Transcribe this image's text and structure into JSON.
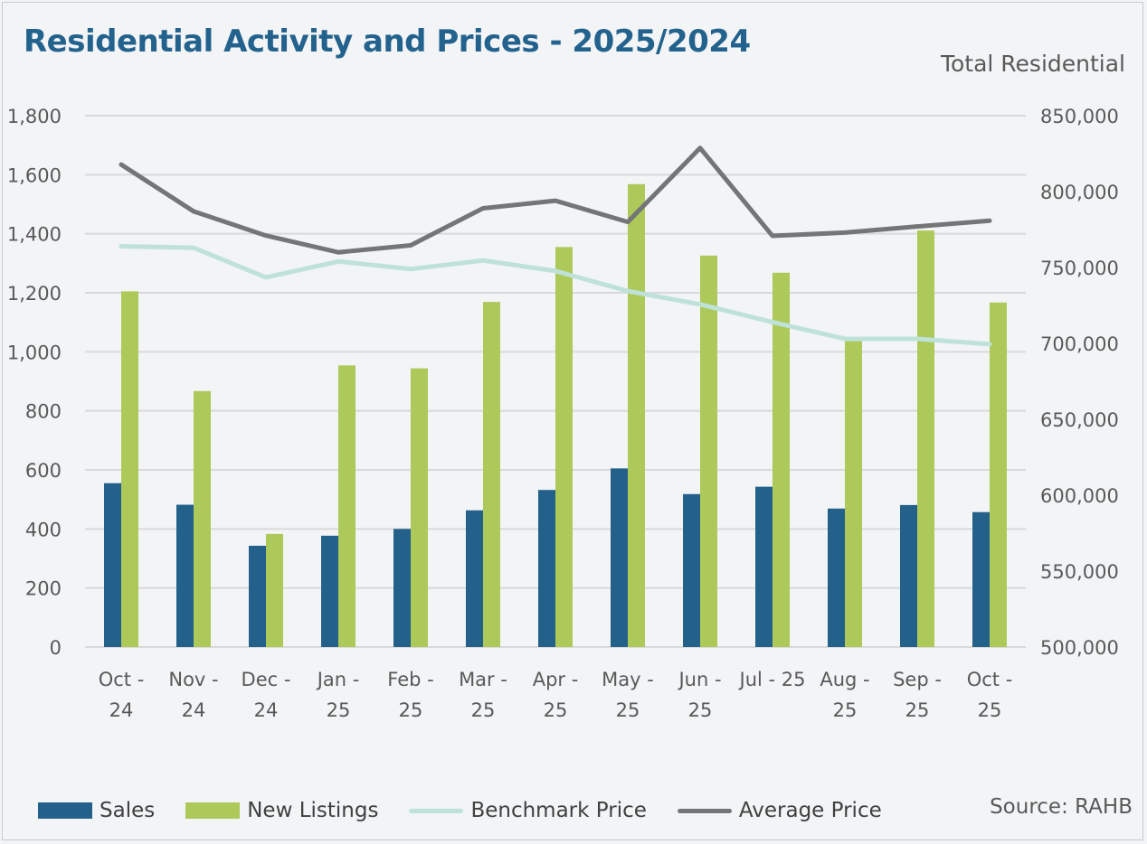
{
  "title": "Residential Activity and Prices - 2025/2024",
  "subtitle": "Total Residential",
  "source": "Source: RAHB",
  "chart_data": {
    "type": "bar",
    "title": "Residential Activity and Prices - 2025/2024",
    "subtitle": "Total Residential",
    "categories": [
      [
        "Oct -",
        "24"
      ],
      [
        "Nov -",
        "24"
      ],
      [
        "Dec -",
        "24"
      ],
      [
        "Jan -",
        "25"
      ],
      [
        "Feb -",
        "25"
      ],
      [
        "Mar -",
        "25"
      ],
      [
        "Apr -",
        "25"
      ],
      [
        "May -",
        "25"
      ],
      [
        "Jun -",
        "25"
      ],
      [
        "Jul - 25",
        ""
      ],
      [
        "Aug -",
        "25"
      ],
      [
        "Sep -",
        "25"
      ],
      [
        "Oct -",
        "25"
      ]
    ],
    "left_axis": {
      "ylim": [
        0,
        1800
      ],
      "ticks": [
        0,
        200,
        400,
        600,
        800,
        1000,
        1200,
        1400,
        1600,
        1800
      ],
      "tick_labels": [
        "0",
        "200",
        "400",
        "600",
        "800",
        "1,000",
        "1,200",
        "1,400",
        "1,600",
        "1,800"
      ]
    },
    "right_axis": {
      "ylim": [
        500000,
        850000
      ],
      "ticks": [
        500000,
        550000,
        600000,
        650000,
        700000,
        750000,
        800000,
        850000
      ],
      "tick_labels": [
        "500,000",
        "550,000",
        "600,000",
        "650,000",
        "700,000",
        "750,000",
        "800,000",
        "850,000"
      ]
    },
    "grid": true,
    "legend_placement": "bottom",
    "series": [
      {
        "name": "Sales",
        "type": "bar",
        "axis": "left",
        "color": "#23608a",
        "values": [
          555,
          482,
          343,
          377,
          400,
          463,
          532,
          605,
          518,
          543,
          469,
          481,
          457
        ]
      },
      {
        "name": "New Listings",
        "type": "bar",
        "axis": "left",
        "color": "#adc95a",
        "values": [
          1205,
          867,
          383,
          954,
          944,
          1169,
          1355,
          1568,
          1326,
          1268,
          1036,
          1411,
          1167
        ]
      },
      {
        "name": "Benchmark Price",
        "type": "line",
        "axis": "right",
        "color": "#bfe2d8",
        "values": [
          764000,
          763000,
          743500,
          754000,
          749000,
          754600,
          747700,
          734500,
          725700,
          714000,
          703000,
          703000,
          699500
        ]
      },
      {
        "name": "Average Price",
        "type": "line",
        "axis": "right",
        "color": "#737577",
        "values": [
          817800,
          787000,
          771000,
          760000,
          764600,
          789000,
          794000,
          780000,
          828700,
          770800,
          773000,
          777000,
          780800
        ]
      }
    ]
  }
}
